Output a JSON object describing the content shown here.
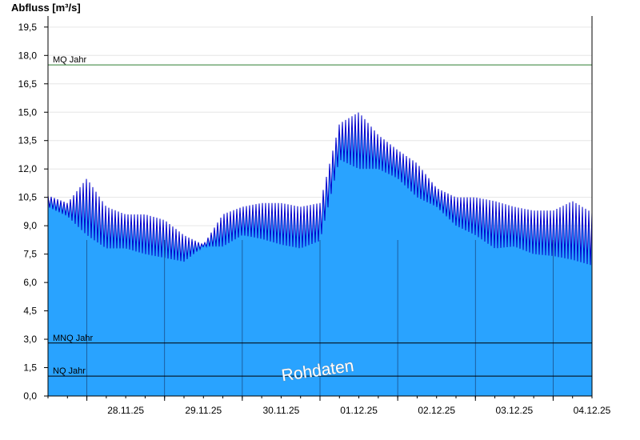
{
  "chart_data": {
    "type": "area",
    "ylabel": "Abfluss [m³/s]",
    "ylim": [
      0,
      20
    ],
    "yticks": [
      {
        "v": 0.0,
        "label": "0,0"
      },
      {
        "v": 1.5,
        "label": "1,5"
      },
      {
        "v": 3.0,
        "label": "3,0"
      },
      {
        "v": 4.5,
        "label": "4,5"
      },
      {
        "v": 6.0,
        "label": "6,0"
      },
      {
        "v": 7.5,
        "label": "7,5"
      },
      {
        "v": 9.0,
        "label": "9,0"
      },
      {
        "v": 10.5,
        "label": "10,5"
      },
      {
        "v": 12.0,
        "label": "12,0"
      },
      {
        "v": 13.5,
        "label": "13,5"
      },
      {
        "v": 15.0,
        "label": "15,0"
      },
      {
        "v": 16.5,
        "label": "16,5"
      },
      {
        "v": 18.0,
        "label": "18,0"
      },
      {
        "v": 19.5,
        "label": "19,5"
      }
    ],
    "x_start": "2025-11-27T12:00",
    "x_end": "2025-12-04T12:00",
    "day_boundaries": [
      "2025-11-28T00:00",
      "2025-11-29T00:00",
      "2025-11-30T00:00",
      "2025-12-01T00:00",
      "2025-12-02T00:00",
      "2025-12-03T00:00",
      "2025-12-04T00:00"
    ],
    "xtick_labels": [
      "28.11.25",
      "29.11.25",
      "30.11.25",
      "01.12.25",
      "02.12.25",
      "03.12.25",
      "04.12.25"
    ],
    "reference_lines": [
      {
        "name": "MQ Jahr",
        "value": 17.5,
        "color": "#2e7d32"
      },
      {
        "name": "MNQ Jahr",
        "value": 2.8,
        "color": "#000000"
      },
      {
        "name": "NQ Jahr",
        "value": 1.05,
        "color": "#000000"
      }
    ],
    "series": [
      {
        "color": "#0000cc",
        "fill": "#29a3ff",
        "x": [
          "2025-11-27T12:00",
          "2025-11-27T18:00",
          "2025-11-28T00:00",
          "2025-11-28T06:00",
          "2025-11-28T12:00",
          "2025-11-28T18:00",
          "2025-11-29T00:00",
          "2025-11-29T06:00",
          "2025-11-29T12:00",
          "2025-11-29T18:00",
          "2025-11-30T00:00",
          "2025-11-30T06:00",
          "2025-11-30T12:00",
          "2025-11-30T18:00",
          "2025-12-01T00:00",
          "2025-12-01T06:00",
          "2025-12-01T12:00",
          "2025-12-01T18:00",
          "2025-12-02T00:00",
          "2025-12-02T06:00",
          "2025-12-02T12:00",
          "2025-12-02T18:00",
          "2025-12-03T00:00",
          "2025-12-03T06:00",
          "2025-12-03T12:00",
          "2025-12-03T18:00",
          "2025-12-04T00:00",
          "2025-12-04T06:00",
          "2025-12-04T12:00"
        ],
        "min": [
          10.0,
          9.5,
          8.5,
          7.8,
          7.8,
          7.5,
          7.3,
          7.1,
          7.9,
          7.9,
          8.5,
          8.3,
          8.0,
          7.8,
          8.2,
          12.5,
          12.0,
          12.0,
          11.5,
          10.5,
          10.0,
          9.0,
          8.5,
          7.8,
          7.9,
          7.5,
          7.4,
          7.2,
          6.9
        ],
        "max": [
          10.6,
          10.2,
          11.5,
          10.0,
          9.6,
          9.6,
          9.3,
          8.5,
          8.0,
          9.6,
          10.0,
          10.2,
          10.2,
          10.0,
          10.2,
          14.4,
          15.0,
          13.8,
          13.0,
          12.3,
          11.0,
          10.5,
          10.5,
          10.3,
          10.0,
          9.8,
          9.8,
          10.3,
          9.7
        ]
      }
    ],
    "watermark": "Rohdaten"
  }
}
